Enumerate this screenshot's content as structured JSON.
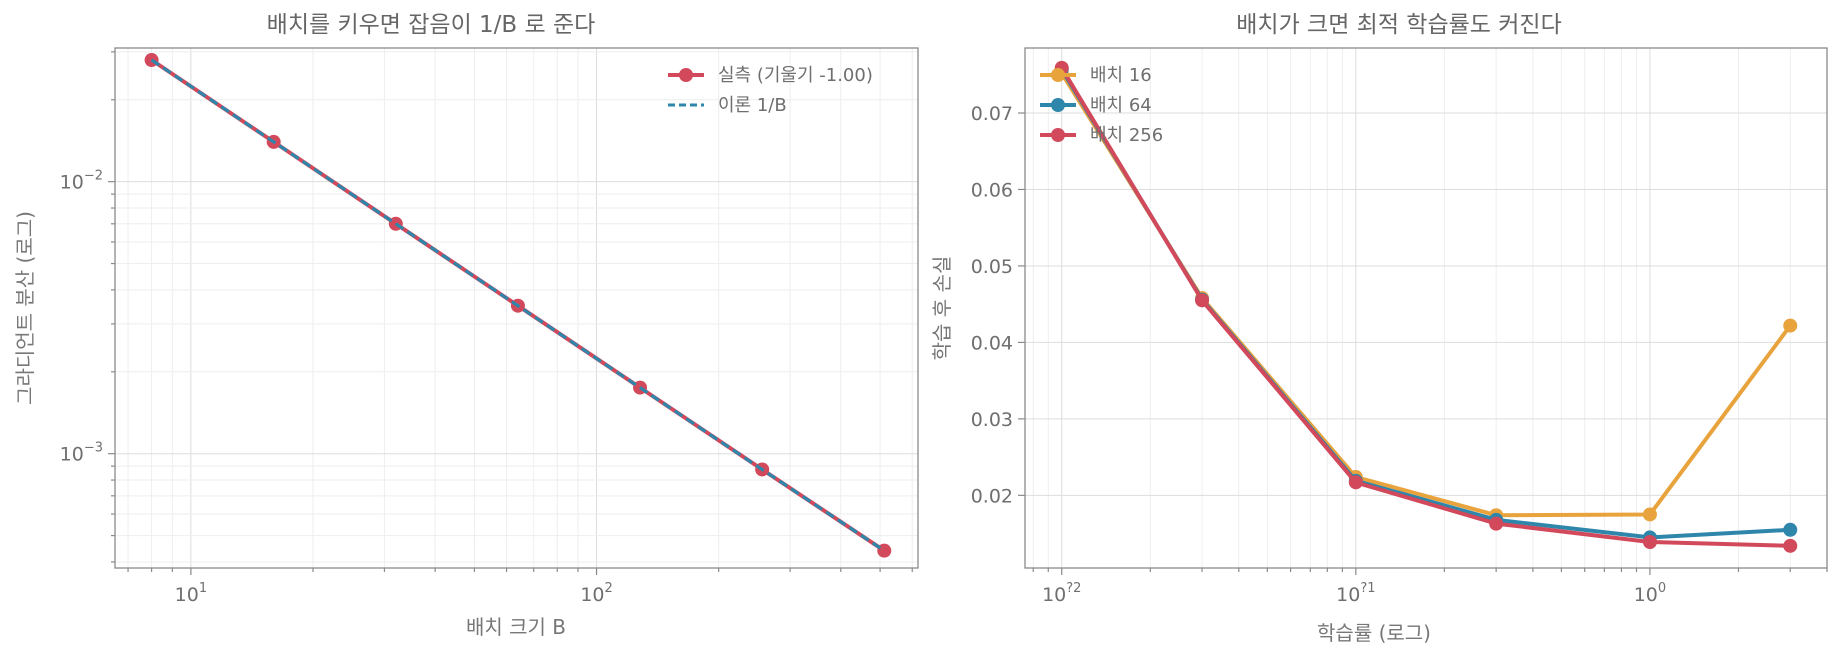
{
  "chart_data": [
    {
      "type": "line",
      "title": "배치를 키우면 잡음이 1/B 로 준다",
      "xlabel": "배치 크기 B",
      "ylabel": "그라디언트 분산 (로그)",
      "xscale": "log",
      "yscale": "log",
      "xlim": [
        6.5,
        620
      ],
      "ylim": [
        0.00038,
        0.031
      ],
      "xticks": [
        {
          "v": 10,
          "base": "10",
          "exp": "1"
        },
        {
          "v": 100,
          "base": "10",
          "exp": "2"
        }
      ],
      "yticks": [
        {
          "v": 0.001,
          "base": "10",
          "exp": "−3"
        },
        {
          "v": 0.01,
          "base": "10",
          "exp": "−2"
        }
      ],
      "grid": true,
      "legend_position": "top-right",
      "series": [
        {
          "name": "실측 (기울기 -1.00)",
          "color": "#d1495b",
          "style": "solid-marker",
          "x": [
            8,
            16,
            32,
            64,
            128,
            256,
            512
          ],
          "y": [
            0.028,
            0.014,
            0.007,
            0.0035,
            0.00175,
            0.000875,
            0.00044
          ]
        },
        {
          "name": "이론 1/B",
          "color": "#2e86ab",
          "style": "dashed",
          "x": [
            8,
            16,
            32,
            64,
            128,
            256,
            512
          ],
          "y": [
            0.028,
            0.014,
            0.007,
            0.0035,
            0.00175,
            0.000875,
            0.00044
          ]
        }
      ]
    },
    {
      "type": "line",
      "title": "배치가 크면 최적 학습률도 커진다",
      "xlabel": "학습률 (로그)",
      "ylabel": "학습 후 손실",
      "xscale": "log",
      "yscale": "linear",
      "xlim": [
        0.0075,
        4.0
      ],
      "ylim": [
        0.0105,
        0.0785
      ],
      "xticks": [
        {
          "v": 0.01,
          "base": "10",
          "exp": "?2"
        },
        {
          "v": 0.1,
          "base": "10",
          "exp": "?1"
        },
        {
          "v": 1,
          "base": "10",
          "exp": "0"
        }
      ],
      "yticks": [
        {
          "v": 0.02,
          "label": "0.02"
        },
        {
          "v": 0.03,
          "label": "0.03"
        },
        {
          "v": 0.04,
          "label": "0.04"
        },
        {
          "v": 0.05,
          "label": "0.05"
        },
        {
          "v": 0.06,
          "label": "0.06"
        },
        {
          "v": 0.07,
          "label": "0.07"
        }
      ],
      "grid": true,
      "legend_position": "top-left",
      "series": [
        {
          "name": "배치 16",
          "color": "#e8a33d",
          "x": [
            0.01,
            0.03,
            0.1,
            0.3,
            1.0,
            3.0
          ],
          "y": [
            0.0752,
            0.0458,
            0.0224,
            0.0174,
            0.0175,
            0.0422
          ]
        },
        {
          "name": "배치 64",
          "color": "#2e86ab",
          "x": [
            0.01,
            0.03,
            0.1,
            0.3,
            1.0,
            3.0
          ],
          "y": [
            0.0757,
            0.0456,
            0.0219,
            0.0168,
            0.0145,
            0.0155
          ]
        },
        {
          "name": "배치 256",
          "color": "#d1495b",
          "x": [
            0.01,
            0.03,
            0.1,
            0.3,
            1.0,
            3.0
          ],
          "y": [
            0.0759,
            0.0455,
            0.0217,
            0.0163,
            0.0139,
            0.0134
          ]
        }
      ]
    }
  ]
}
